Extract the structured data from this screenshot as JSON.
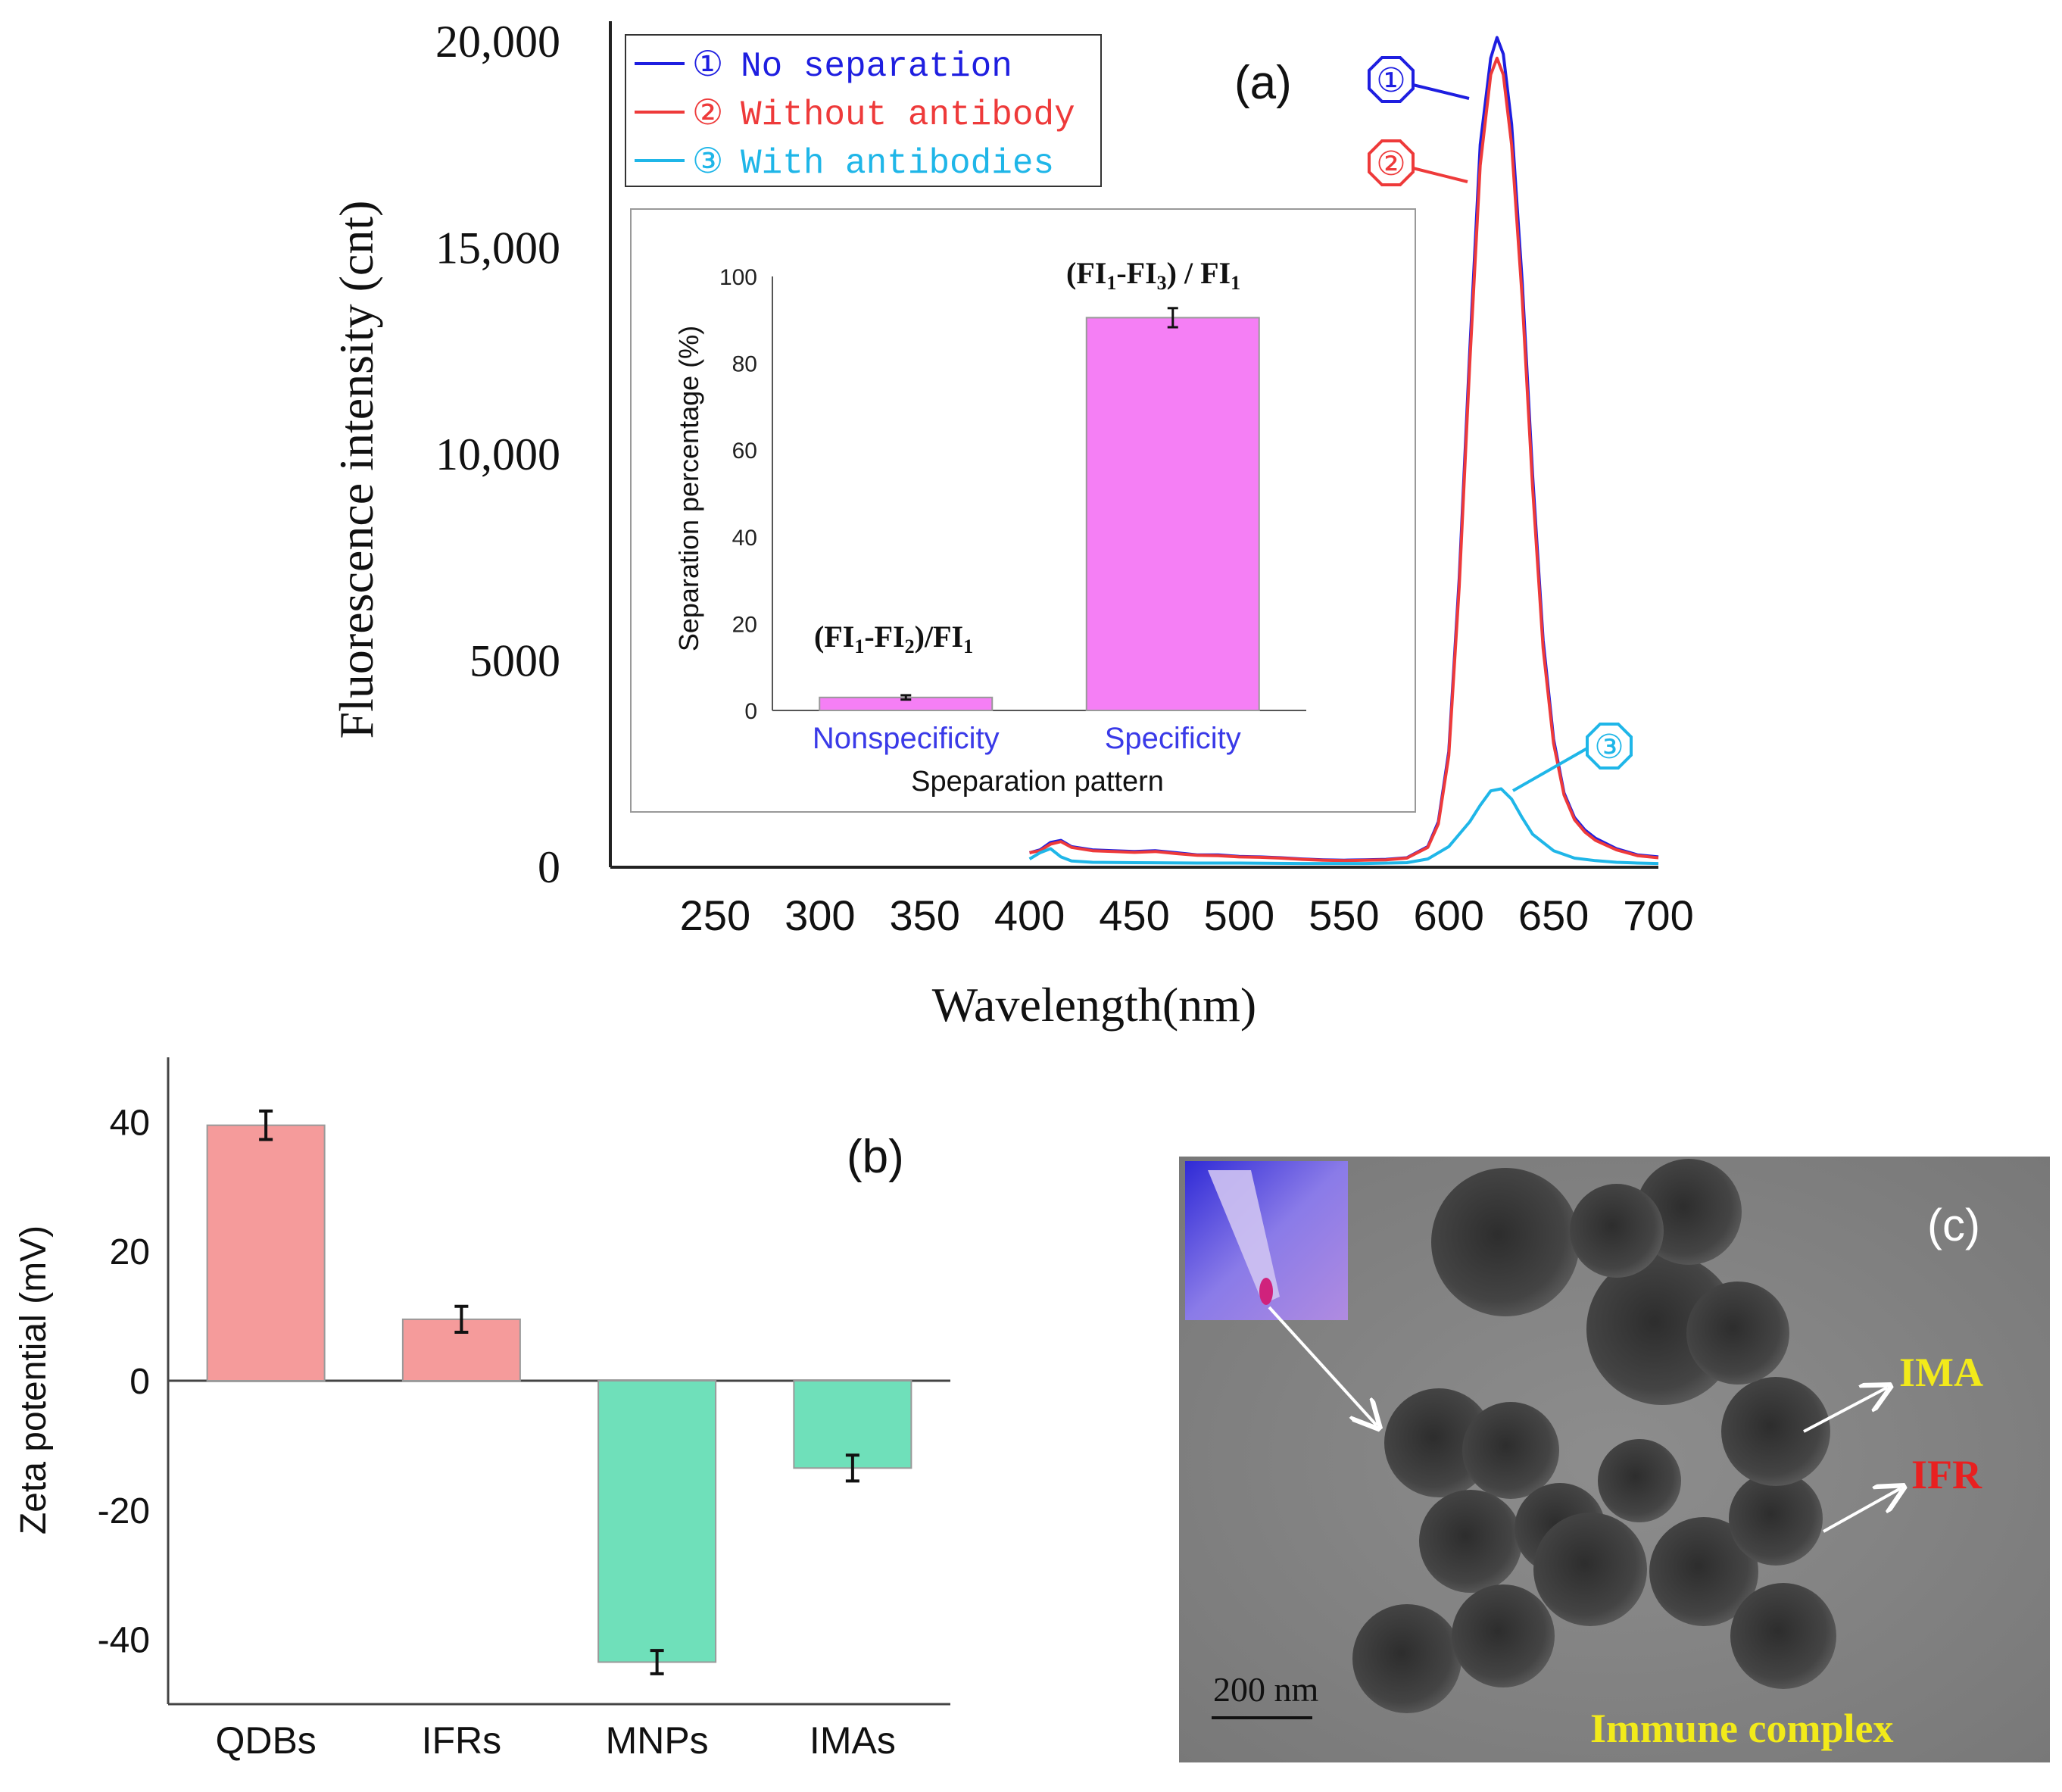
{
  "chart_data": [
    {
      "panel": "a",
      "type": "line",
      "panel_label": "(a)",
      "xlabel": "Wavelength(nm)",
      "ylabel": "Fluorescence intensity (cnt)",
      "xlim": [
        200,
        700
      ],
      "ylim": [
        0,
        20000
      ],
      "x_ticks": [
        250,
        300,
        350,
        400,
        450,
        500,
        550,
        600,
        650,
        700
      ],
      "x_tick_labels": [
        "250",
        "300",
        "350",
        "400",
        "450",
        "500",
        "550",
        "600",
        "650",
        "700"
      ],
      "y_ticks": [
        0,
        5000,
        10000,
        15000,
        20000
      ],
      "y_tick_labels": [
        "0",
        "5000",
        "10,000",
        "15,000",
        "20,000"
      ],
      "legend": "top-left",
      "series": [
        {
          "name": "No separation",
          "marker": "①",
          "color": "#1e1ee0",
          "x": [
            400,
            405,
            410,
            415,
            420,
            430,
            440,
            450,
            460,
            470,
            480,
            490,
            500,
            510,
            520,
            530,
            540,
            550,
            560,
            570,
            580,
            590,
            595,
            600,
            605,
            610,
            615,
            620,
            623,
            626,
            630,
            635,
            640,
            645,
            650,
            655,
            660,
            665,
            670,
            680,
            690,
            700
          ],
          "y": [
            350,
            420,
            600,
            650,
            500,
            420,
            400,
            380,
            400,
            350,
            300,
            300,
            260,
            250,
            230,
            200,
            180,
            170,
            180,
            190,
            230,
            500,
            1100,
            2800,
            7000,
            12500,
            17500,
            19600,
            20100,
            19700,
            18000,
            14200,
            9500,
            5500,
            3100,
            1800,
            1200,
            900,
            700,
            450,
            300,
            250
          ]
        },
        {
          "name": "Without antibody",
          "marker": "②",
          "color": "#ee3a3a",
          "x": [
            400,
            405,
            410,
            415,
            420,
            430,
            440,
            450,
            460,
            470,
            480,
            490,
            500,
            510,
            520,
            530,
            540,
            550,
            560,
            570,
            580,
            590,
            595,
            600,
            605,
            610,
            615,
            620,
            623,
            626,
            630,
            635,
            640,
            645,
            650,
            655,
            660,
            665,
            670,
            680,
            690,
            700
          ],
          "y": [
            350,
            400,
            560,
            620,
            480,
            400,
            380,
            360,
            380,
            330,
            290,
            280,
            250,
            240,
            220,
            190,
            170,
            160,
            170,
            180,
            220,
            480,
            1050,
            2700,
            6800,
            12200,
            17000,
            19200,
            19600,
            19200,
            17500,
            13800,
            9200,
            5300,
            3000,
            1750,
            1150,
            850,
            650,
            420,
            280,
            230
          ]
        },
        {
          "name": "With antibodies",
          "marker": "③",
          "color": "#1fb6e8",
          "x": [
            400,
            405,
            410,
            415,
            420,
            430,
            450,
            480,
            500,
            530,
            560,
            580,
            590,
            600,
            610,
            615,
            620,
            625,
            630,
            635,
            640,
            650,
            660,
            670,
            680,
            690,
            700
          ],
          "y": [
            200,
            350,
            450,
            250,
            150,
            120,
            110,
            100,
            100,
            90,
            90,
            110,
            200,
            500,
            1100,
            1500,
            1850,
            1900,
            1650,
            1200,
            800,
            400,
            220,
            160,
            120,
            100,
            90
          ]
        }
      ],
      "annotations": [
        {
          "label": "①",
          "series": "No separation"
        },
        {
          "label": "②",
          "series": "Without antibody"
        },
        {
          "label": "③",
          "series": "With antibodies"
        }
      ],
      "inset": {
        "type": "bar",
        "ylabel": "Separation percentage (%)",
        "xlabel": "Speparation pattern",
        "ylim": [
          0,
          100
        ],
        "y_ticks": [
          0,
          20,
          40,
          60,
          80,
          100
        ],
        "y_tick_labels": [
          "0",
          "20",
          "40",
          "60",
          "80",
          "100"
        ],
        "categories": [
          "Nonspecificity",
          "Specificity"
        ],
        "values": [
          3,
          90.5
        ],
        "errors": [
          0.5,
          2.2
        ],
        "bar_color": "#f57ff5",
        "category_color": "#3a3ae8",
        "formula_main": [
          "(FI",
          "-FI",
          ")/FI",
          "(FI",
          "-FI",
          ") / FI"
        ],
        "formula_sub": [
          "1",
          "2",
          "1",
          "1",
          "3",
          "1"
        ]
      }
    },
    {
      "panel": "b",
      "type": "bar",
      "panel_label": "(b)",
      "xlabel": "",
      "ylabel": "Zeta potential (mV)",
      "ylim": [
        -50,
        50
      ],
      "y_ticks": [
        -40,
        -20,
        0,
        20,
        40
      ],
      "y_tick_labels": [
        "-40",
        "-20",
        "0",
        "20",
        "40"
      ],
      "categories": [
        "QDBs",
        "IFRs",
        "MNPs",
        "IMAs"
      ],
      "values": [
        39.5,
        9.5,
        -43.5,
        -13.5
      ],
      "errors": [
        2.2,
        2.0,
        1.8,
        2.0
      ],
      "colors": [
        "#f59b9b",
        "#f59b9b",
        "#6fe0ba",
        "#6fe0ba"
      ]
    }
  ],
  "panel_c": {
    "panel_label": "(c)",
    "labels": {
      "ima": "IMA",
      "ifr": "IFR",
      "scale": "200 nm",
      "caption": "Immune complex"
    },
    "colors": {
      "ima": "#f2ea1a",
      "ifr": "#e82020",
      "caption": "#f2ea1a"
    }
  }
}
